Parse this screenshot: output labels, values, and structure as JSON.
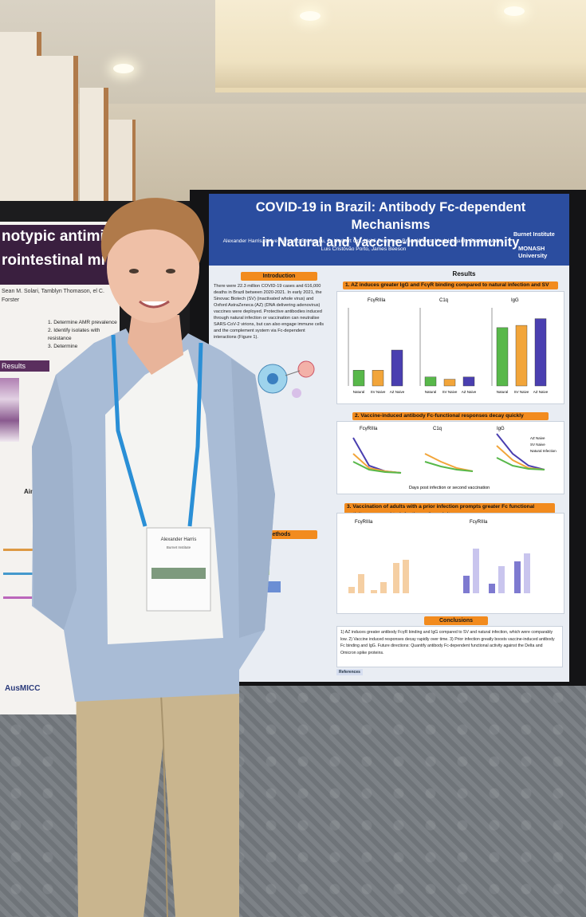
{
  "poster": {
    "title_line1": "COVID-19 in Brazil: Antibody Fc-dependent Mechanisms",
    "title_line2": "in Natural and Vaccine-Induced Immunity",
    "authors": "Alexander Harris, Liriye Kurtovic, Shirley Lu, D. Herbert Opi, Heidi Drummer, Bruce Wines, Mark Hogarth, Clarissa Valim, Luis Cristóvão Porto, James Beeson",
    "logo_burnet": "Burnet Institute",
    "logo_monash": "MONASH University",
    "introduction_heading": "Introduction",
    "introduction_text": "There were 22.3 million COVID-19 cases and 616,000 deaths in Brazil between 2020-2021. In early 2021, the Sinovac Biotech (SV) (inactivated whole virus) and Oxford AstraZeneca (AZ) (DNA delivering adenovirus) vaccines were deployed. Protective antibodies induced through natural infection or vaccination can neutralise SARS-CoV-2 virions, but can also engage immune cells and the complement system via Fc-dependent interactions (Figure 1).",
    "methods_heading": "Methods",
    "results_heading": "Results",
    "fig1_title": "1. AZ induces greater IgG and FcγR binding compared to natural infection and SV",
    "fig2_title": "2. Vaccine-induced antibody Fc-functional responses decay quickly",
    "fig3_title": "3. Vaccination of adults with a prior infection prompts greater Fc functional activity compared to infection naïve adults",
    "conclusions_heading": "Conclusions",
    "conclusions_text": "1) AZ induces greater antibody FcγR binding and IgG compared to SV and natural infection, which were comparably low. 2) Vaccine induced responses decay rapidly over time. 3) Prior infection greatly boosts vaccine-induced antibody Fc binding and IgG. Future directions: Quantify antibody Fc-dependent functional activity against the Delta and Omicron spike proteins.",
    "references_label": "References",
    "panel_labels": [
      "FcγRIIIa",
      "C1q",
      "IgG"
    ],
    "fig2_x_label": "Days post infection or second vaccination",
    "fig2_legend": [
      "AZ Naive",
      "SV Naive",
      "Natural Infection"
    ],
    "fig1_categories": [
      "Natural",
      "SV Naive",
      "AZ Naive"
    ]
  },
  "left_poster": {
    "title_line1": "notypic antimi",
    "title_line2": "rointestinal mi",
    "results_label": "Results",
    "aims_label": "Aim 3:",
    "logo": "AusMICC",
    "list_items": [
      "1. Determine AMR prevalence",
      "2. Identify isolates with resistance",
      "3. Determine"
    ]
  },
  "badge": {
    "name": "Alexander Harris",
    "org": "Burnet Institute"
  },
  "colors": {
    "poster_blue": "#2b4d9f",
    "accent_orange": "#f28b1e",
    "shirt_blue": "#a9bcd6",
    "khaki": "#c9b58e",
    "lanyard": "#2a8fd6"
  },
  "chart_data": [
    {
      "type": "bar",
      "title": "FcγRIIIa",
      "categories": [
        "Natural",
        "SV Naive",
        "AZ Naive"
      ],
      "values": [
        0.35,
        0.35,
        0.8
      ]
    },
    {
      "type": "bar",
      "title": "C1q",
      "categories": [
        "Natural",
        "SV Naive",
        "AZ Naive"
      ],
      "values": [
        0.2,
        0.15,
        0.2
      ]
    },
    {
      "type": "bar",
      "title": "IgG",
      "categories": [
        "Natural",
        "SV Naive",
        "AZ Naive"
      ],
      "values": [
        1.3,
        1.35,
        1.5
      ]
    }
  ]
}
